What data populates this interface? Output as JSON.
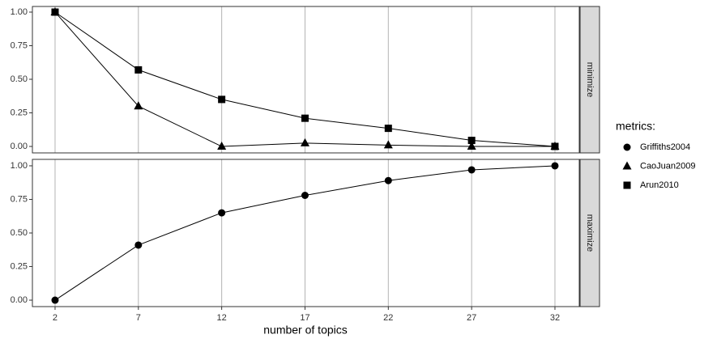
{
  "chart_data": [
    {
      "type": "line",
      "strip": "minimize",
      "legend_title": "metrics:",
      "x": [
        2,
        7,
        12,
        17,
        22,
        27,
        32
      ],
      "xlim": [
        0.64,
        33.46
      ],
      "xticks": [
        2,
        7,
        12,
        17,
        22,
        27,
        32
      ],
      "x_tick_labels": false,
      "ylim": [
        -0.048,
        1.042
      ],
      "yticks": [
        {
          "value": 0,
          "label": "0.00"
        },
        {
          "value": 0.25,
          "label": "0.25"
        },
        {
          "value": 0.5,
          "label": "0.50"
        },
        {
          "value": 0.75,
          "label": "0.75"
        },
        {
          "value": 1,
          "label": "1.00"
        }
      ],
      "grid": "x",
      "series": [
        {
          "name": "CaoJuan2009",
          "marker": "triangle",
          "color": "#000000",
          "values": [
            1.0,
            0.3,
            0.0,
            0.025,
            0.01,
            0.0,
            0.0
          ]
        },
        {
          "name": "Arun2010",
          "marker": "square",
          "color": "#000000",
          "values": [
            1.0,
            0.57,
            0.35,
            0.21,
            0.135,
            0.045,
            0.0
          ]
        }
      ]
    },
    {
      "type": "line",
      "strip": "maximize",
      "xlabel": "number of topics",
      "x": [
        2,
        7,
        12,
        17,
        22,
        27,
        32
      ],
      "xlim": [
        0.64,
        33.46
      ],
      "xticks": [
        2,
        7,
        12,
        17,
        22,
        27,
        32
      ],
      "x_tick_labels": true,
      "ylim": [
        -0.048,
        1.048
      ],
      "yticks": [
        {
          "value": 0,
          "label": "0.00"
        },
        {
          "value": 0.25,
          "label": "0.25"
        },
        {
          "value": 0.5,
          "label": "0.50"
        },
        {
          "value": 0.75,
          "label": "0.75"
        },
        {
          "value": 1,
          "label": "1.00"
        }
      ],
      "grid": "x",
      "series": [
        {
          "name": "Griffiths2004",
          "marker": "circle",
          "color": "#000000",
          "values": [
            0.0,
            0.41,
            0.65,
            0.78,
            0.89,
            0.97,
            1.0
          ]
        }
      ]
    }
  ]
}
